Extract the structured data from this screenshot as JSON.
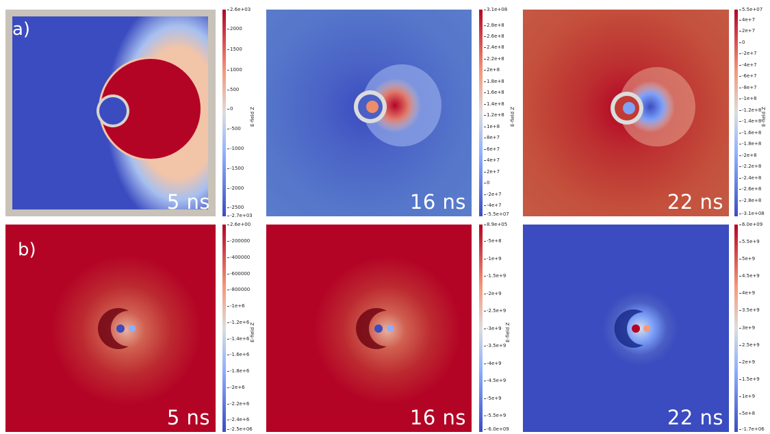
{
  "row_labels": [
    "a)",
    "b)"
  ],
  "cbar_title": "E-field Z",
  "panels": [
    {
      "time": "5 ns",
      "ticks": [
        "2.6e+03",
        "2000",
        "1500",
        "1000",
        "500",
        "0",
        "-500",
        "-1000",
        "-1500",
        "-2000",
        "-2500",
        "-2.7e+03"
      ]
    },
    {
      "time": "16 ns",
      "ticks": [
        "3.1e+08",
        "2.8e+8",
        "2.6e+8",
        "2.4e+8",
        "2.2e+8",
        "2e+8",
        "1.8e+8",
        "1.6e+8",
        "1.4e+8",
        "1.2e+8",
        "1e+8",
        "8e+7",
        "6e+7",
        "4e+7",
        "2e+7",
        "0",
        "-2e+7",
        "-4e+7",
        "-5.5e+07"
      ]
    },
    {
      "time": "22 ns",
      "ticks": [
        "5.5e+07",
        "4e+7",
        "2e+7",
        "0",
        "-2e+7",
        "-4e+7",
        "-6e+7",
        "-8e+7",
        "-1e+8",
        "-1.2e+8",
        "-1.4e+8",
        "-1.6e+8",
        "-1.8e+8",
        "-2e+8",
        "-2.2e+8",
        "-2.4e+8",
        "-2.6e+8",
        "-2.8e+8",
        "-3.1e+08"
      ]
    },
    {
      "time": "5 ns",
      "ticks": [
        "2.6e+00",
        "-200000",
        "-400000",
        "-600000",
        "-800000",
        "-1e+6",
        "-1.2e+6",
        "-1.4e+6",
        "-1.6e+6",
        "-1.8e+6",
        "-2e+6",
        "-2.2e+6",
        "-2.4e+6",
        "-2.5e+06"
      ]
    },
    {
      "time": "16 ns",
      "ticks": [
        "8.9e+05",
        "-5e+8",
        "-1e+9",
        "-1.5e+9",
        "-2e+9",
        "-2.5e+9",
        "-3e+9",
        "-3.5e+9",
        "-4e+9",
        "-4.5e+9",
        "-5e+9",
        "-5.5e+9",
        "-6.0e+09"
      ]
    },
    {
      "time": "22 ns",
      "ticks": [
        "6.0e+09",
        "5.5e+9",
        "5e+9",
        "4.5e+9",
        "4e+9",
        "3.5e+9",
        "3e+9",
        "2.5e+9",
        "2e+9",
        "1.5e+9",
        "1e+9",
        "5e+8",
        "-1.7e+06"
      ]
    }
  ],
  "colors": {
    "red": "#b40426",
    "blue": "#3b4cc0",
    "white": "#dddddd",
    "frame": "#c8c2b8"
  }
}
